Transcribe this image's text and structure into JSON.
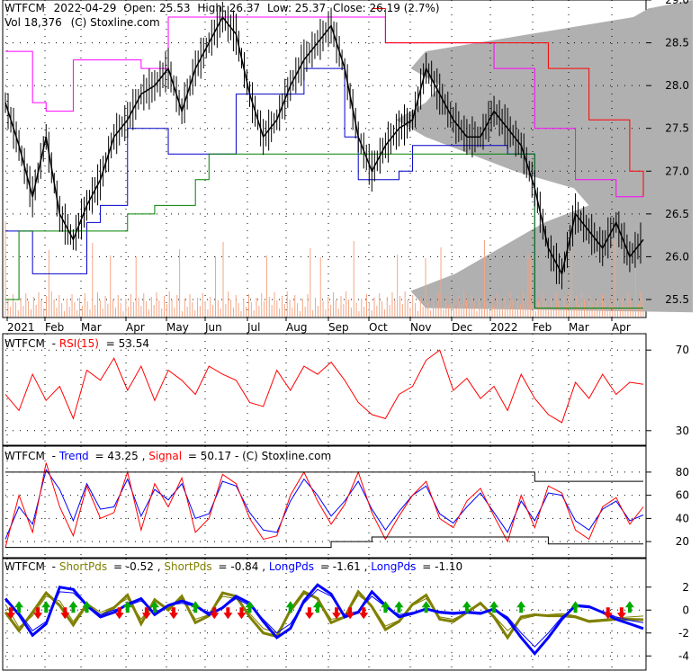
{
  "chart_data": [
    {
      "type": "line",
      "panel": "price",
      "symbol": "WTFCM",
      "header": {
        "date": "2022-04-29",
        "open": "Open: 25.53",
        "high": "High: 26.37",
        "low": "Low: 25.37",
        "close": "Close: 26.19 (2.7%)",
        "volume": "Vol 18,376",
        "source": "(C) Stoxline.com"
      },
      "x_tick_labels": [
        "2021",
        "Feb",
        "Mar",
        "Apr",
        "May",
        "Jun",
        "Jul",
        "Aug",
        "Sep",
        "Oct",
        "Nov",
        "Dec",
        "2022",
        "Feb",
        "Mar",
        "Apr"
      ],
      "y_tick_labels": [
        "29.0",
        "28.5",
        "28.0",
        "27.5",
        "27.0",
        "26.5",
        "26.0",
        "25.5"
      ],
      "ylim": [
        25.3,
        29.0
      ],
      "series": [
        {
          "key": "close",
          "color": "#000000",
          "values": [
            27.8,
            27.3,
            26.7,
            27.4,
            26.5,
            26.2,
            26.6,
            26.9,
            27.4,
            27.6,
            27.9,
            28.0,
            28.2,
            27.7,
            28.2,
            28.5,
            28.8,
            28.6,
            27.9,
            27.4,
            27.6,
            28.0,
            28.3,
            28.5,
            28.7,
            28.2,
            27.4,
            27.0,
            27.3,
            27.5,
            27.6,
            28.2,
            27.9,
            27.6,
            27.4,
            27.4,
            27.7,
            27.5,
            27.3,
            26.8,
            26.1,
            25.8,
            26.5,
            26.3,
            26.1,
            26.4,
            26.0,
            26.2
          ]
        },
        {
          "key": "upper_band",
          "color": "#ff00ff",
          "values": [
            28.4,
            28.4,
            27.8,
            27.7,
            27.7,
            28.3,
            28.3,
            28.3,
            28.3,
            28.3,
            28.2,
            28.2,
            28.8,
            28.8,
            28.8,
            28.8,
            28.8,
            28.8,
            28.8,
            28.8,
            28.8,
            28.8,
            28.8,
            28.8,
            28.8,
            28.8,
            28.8,
            28.8,
            28.5,
            28.5,
            28.5,
            28.5,
            28.5,
            28.5,
            28.5,
            28.5,
            28.2,
            28.2,
            28.2,
            27.5,
            27.5,
            27.5,
            26.9,
            26.9,
            26.9,
            26.7,
            26.7,
            26.7
          ]
        },
        {
          "key": "resistance",
          "color": "#ff0000",
          "values": [
            null,
            null,
            null,
            null,
            null,
            null,
            null,
            null,
            null,
            null,
            null,
            null,
            null,
            null,
            null,
            null,
            null,
            null,
            null,
            null,
            null,
            null,
            null,
            null,
            null,
            null,
            null,
            28.9,
            28.5,
            28.5,
            28.5,
            28.5,
            28.5,
            28.5,
            28.5,
            28.5,
            28.5,
            28.5,
            28.5,
            28.5,
            28.2,
            28.2,
            28.2,
            27.6,
            27.6,
            27.6,
            27.0,
            26.7
          ]
        },
        {
          "key": "lower_band",
          "color": "#0000cc",
          "values": [
            26.3,
            26.3,
            25.8,
            25.8,
            25.8,
            25.8,
            26.4,
            26.6,
            26.6,
            27.5,
            27.5,
            27.5,
            27.2,
            27.2,
            27.2,
            27.2,
            27.2,
            27.9,
            27.9,
            27.9,
            27.9,
            27.9,
            28.2,
            28.2,
            28.2,
            27.4,
            26.9,
            26.9,
            26.9,
            27.0,
            27.3,
            27.3,
            27.3,
            27.3,
            27.3,
            27.3,
            27.3,
            27.2,
            27.2,
            25.4,
            25.4,
            25.4,
            25.4,
            25.4,
            25.4,
            25.4,
            25.4,
            25.4
          ]
        },
        {
          "key": "support",
          "color": "#008000",
          "values": [
            25.5,
            26.3,
            26.3,
            26.3,
            26.3,
            26.3,
            26.3,
            26.3,
            26.3,
            26.5,
            26.5,
            26.6,
            26.6,
            26.6,
            26.9,
            27.2,
            27.2,
            27.2,
            27.2,
            27.2,
            27.2,
            27.2,
            27.2,
            27.2,
            27.2,
            27.2,
            27.2,
            27.2,
            27.2,
            27.2,
            27.2,
            27.2,
            27.2,
            27.2,
            27.2,
            27.2,
            27.2,
            27.2,
            27.2,
            25.4,
            25.4,
            25.4,
            25.4,
            25.4,
            25.4,
            25.4,
            25.4,
            25.4
          ]
        }
      ]
    },
    {
      "type": "line",
      "panel": "rsi",
      "symbol": "WTFCM",
      "indicator": "RSI(15)",
      "value": "= 53.54",
      "y_tick_labels": [
        "70",
        "30"
      ],
      "ylim": [
        25,
        75
      ],
      "series": [
        {
          "key": "rsi",
          "color": "#ff0000",
          "values": [
            48,
            40,
            58,
            45,
            52,
            36,
            60,
            55,
            66,
            50,
            62,
            45,
            60,
            55,
            48,
            62,
            58,
            55,
            44,
            42,
            60,
            50,
            62,
            58,
            64,
            55,
            44,
            38,
            36,
            48,
            52,
            65,
            70,
            50,
            56,
            46,
            52,
            40,
            58,
            46,
            38,
            34,
            54,
            46,
            58,
            48,
            54,
            53
          ]
        }
      ]
    },
    {
      "type": "line",
      "panel": "trend",
      "symbol": "WTFCM",
      "series": [
        {
          "name": "Trend",
          "value": "= 43.25",
          "color": "#0000ff",
          "values": [
            22,
            50,
            35,
            82,
            65,
            38,
            70,
            48,
            50,
            74,
            42,
            65,
            56,
            70,
            40,
            44,
            72,
            68,
            45,
            30,
            28,
            55,
            74,
            60,
            42,
            55,
            72,
            48,
            30,
            46,
            60,
            68,
            44,
            36,
            50,
            62,
            45,
            28,
            55,
            38,
            62,
            60,
            38,
            30,
            48,
            55,
            38,
            43
          ]
        },
        {
          "name": "Signal",
          "value": "= 50.17",
          "color": "#ff0000",
          "values": [
            15,
            60,
            28,
            88,
            50,
            25,
            68,
            40,
            45,
            80,
            30,
            70,
            50,
            75,
            28,
            40,
            78,
            70,
            40,
            22,
            25,
            60,
            80,
            55,
            35,
            52,
            80,
            45,
            22,
            42,
            60,
            72,
            40,
            32,
            55,
            66,
            42,
            20,
            60,
            32,
            68,
            62,
            30,
            22,
            50,
            58,
            35,
            50
          ]
        }
      ],
      "header_tail": "(C) Stoxline.com",
      "y_tick_labels": [
        "80",
        "60",
        "40",
        "20"
      ],
      "ylim": [
        10,
        90
      ]
    },
    {
      "type": "line",
      "panel": "pds",
      "symbol": "WTFCM",
      "series": [
        {
          "name": "ShortPds",
          "value": "= -0.52",
          "color": "#808000",
          "values": [
            0.5,
            -1.5,
            -0.5,
            1.2,
            0.8,
            -1.0,
            0.6,
            -0.2,
            0.3,
            1.0,
            -0.8,
            0.8,
            0.2,
            1.0,
            -0.8,
            -0.4,
            1.2,
            1.0,
            -0.3,
            -1.6,
            -2.0,
            -0.2,
            1.4,
            1.0,
            -0.8,
            -0.6,
            1.3,
            0.4,
            -1.4,
            -0.9,
            0.4,
            1.0,
            -0.6,
            -0.8,
            -0.2,
            0.5,
            -0.5,
            -1.8,
            -0.8,
            -0.5,
            -0.4,
            -0.3,
            -0.5,
            -0.9,
            -0.8,
            -0.7,
            -0.6,
            -0.52
          ]
        },
        {
          "name": "ShortPds",
          "value": "= -0.84",
          "color": "#808000",
          "values": [
            -0.2,
            -1.8,
            -0.2,
            1.5,
            0.4,
            -1.3,
            0.5,
            -0.5,
            0.2,
            1.3,
            -1.2,
            0.9,
            0.0,
            1.2,
            -1.1,
            -0.5,
            1.5,
            1.2,
            -0.6,
            -2.0,
            -2.3,
            0.0,
            1.6,
            1.0,
            -1.1,
            -0.6,
            1.6,
            0.3,
            -1.7,
            -1.0,
            0.5,
            1.3,
            -0.8,
            -1.0,
            -0.2,
            0.6,
            -0.6,
            -2.4,
            -0.6,
            -0.4,
            -0.5,
            -0.5,
            -0.6,
            -1.0,
            -0.9,
            -0.8,
            -0.8,
            -0.84
          ]
        },
        {
          "name": "LongPds",
          "value": "= -1.61",
          "color": "#0000ff",
          "values": [
            1.0,
            -0.4,
            -2.2,
            -1.2,
            2.0,
            1.8,
            0.4,
            -0.6,
            -0.2,
            0.5,
            1.0,
            -0.4,
            0.4,
            0.8,
            0.4,
            -0.4,
            0.2,
            1.2,
            0.6,
            -1.0,
            -2.4,
            -1.6,
            0.8,
            2.2,
            1.4,
            -0.6,
            -0.2,
            1.6,
            0.4,
            -0.6,
            -0.3,
            0.1,
            -0.2,
            -0.3,
            -0.2,
            -0.3,
            0.1,
            -0.8,
            -2.4,
            -3.8,
            -2.4,
            -0.8,
            0.4,
            0.3,
            -0.2,
            -0.8,
            -1.2,
            -1.61
          ]
        },
        {
          "name": "LongPds",
          "value": "= -1.10",
          "color": "#0000ff",
          "values": [
            0.8,
            -0.2,
            -1.8,
            -1.0,
            1.6,
            1.5,
            0.4,
            -0.4,
            0.0,
            0.4,
            0.8,
            -0.2,
            0.4,
            0.6,
            0.3,
            -0.2,
            0.2,
            1.0,
            0.4,
            -0.8,
            -2.0,
            -1.2,
            0.6,
            1.8,
            1.2,
            -0.4,
            -0.1,
            1.2,
            0.3,
            -0.4,
            -0.2,
            0.1,
            -0.1,
            -0.2,
            -0.1,
            -0.2,
            0.1,
            -0.6,
            -2.0,
            -3.2,
            -2.0,
            -0.6,
            0.3,
            0.2,
            -0.1,
            -0.6,
            -0.9,
            -1.1
          ]
        }
      ],
      "y_tick_labels": [
        "2",
        "0",
        "-2",
        "-4"
      ],
      "ylim": [
        -5,
        3
      ]
    }
  ]
}
